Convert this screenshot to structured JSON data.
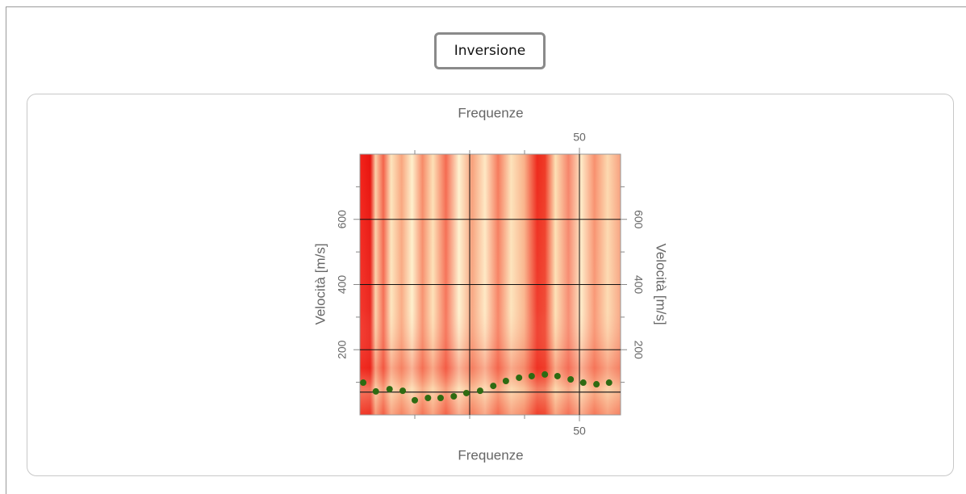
{
  "button": {
    "label": "Inversione"
  },
  "chart_data": {
    "type": "scatter",
    "x_label": "Frequenze",
    "y_label": "Velocità [m/s]",
    "x": [
      10.6,
      12.9,
      15.4,
      17.8,
      20.0,
      22.4,
      24.7,
      27.1,
      29.4,
      31.9,
      34.3,
      36.6,
      39.0,
      41.3,
      43.7,
      46.0,
      48.4,
      50.7,
      53.1,
      55.4
    ],
    "values": [
      99,
      72,
      79,
      74,
      45,
      52,
      52,
      57,
      67,
      74,
      89,
      104,
      114,
      119,
      124,
      119,
      109,
      99,
      94,
      99
    ],
    "color": "#2e6b12",
    "xlim": [
      10,
      57.5
    ],
    "xticks": [
      50
    ],
    "x_minor_ticks": [
      20,
      30,
      40
    ],
    "x_grid": [
      30,
      50
    ],
    "ylim": [
      0,
      800
    ],
    "yticks": [
      200,
      400,
      600
    ],
    "y_minor_ticks": [
      100,
      300,
      500,
      700
    ],
    "hline": 70
  }
}
